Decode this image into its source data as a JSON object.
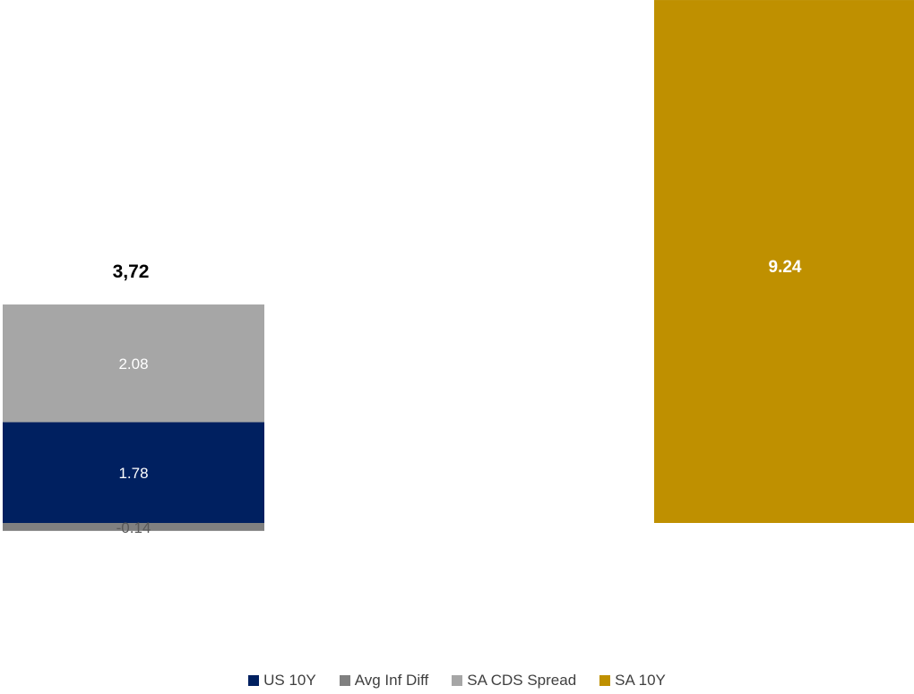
{
  "chart_data": {
    "type": "bar",
    "stacked": true,
    "categories": [
      "",
      ""
    ],
    "total_labels": [
      "3,72",
      ""
    ],
    "ylim": [
      -0.5,
      9.3
    ],
    "grid": false,
    "legend_position": "bottom",
    "series": [
      {
        "name": "US 10Y",
        "color": "#002060",
        "values": [
          1.78,
          0
        ],
        "labels": [
          "1.78",
          ""
        ]
      },
      {
        "name": "Avg Inf Diff",
        "color": "#808080",
        "values": [
          -0.14,
          0
        ],
        "labels": [
          "-0.14",
          ""
        ]
      },
      {
        "name": "SA CDS Spread",
        "color": "#A6A6A6",
        "values": [
          2.08,
          0
        ],
        "labels": [
          "2.08",
          ""
        ]
      },
      {
        "name": "SA 10Y",
        "color": "#BF9000",
        "values": [
          0,
          9.24
        ],
        "labels": [
          "",
          "9.24"
        ]
      }
    ]
  }
}
